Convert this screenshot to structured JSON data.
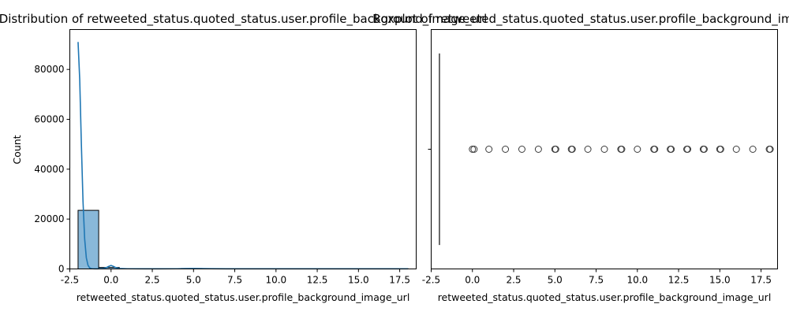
{
  "chart_data": [
    {
      "type": "histogram",
      "title": "Distribution of retweeted_status.quoted_status.user.profile_background_image_url",
      "xlabel": "retweeted_status.quoted_status.user.profile_background_image_url",
      "ylabel": "Count",
      "xlim": [
        -2.5,
        18.5
      ],
      "ylim": [
        0,
        96000
      ],
      "x_ticks": [
        -2.5,
        0.0,
        2.5,
        5.0,
        7.5,
        10.0,
        12.5,
        15.0,
        17.5
      ],
      "y_ticks": [
        0,
        20000,
        40000,
        60000,
        80000
      ],
      "bins": [
        {
          "x0": -2.0,
          "x1": -0.75,
          "count": 23500
        },
        {
          "x0": -0.75,
          "x1": 0.5,
          "count": 600
        },
        {
          "x0": 0.5,
          "x1": 1.75,
          "count": 150
        },
        {
          "x0": 1.75,
          "x1": 3.0,
          "count": 80
        },
        {
          "x0": 3.0,
          "x1": 4.25,
          "count": 90
        },
        {
          "x0": 4.25,
          "x1": 5.5,
          "count": 180
        },
        {
          "x0": 5.5,
          "x1": 6.75,
          "count": 120
        },
        {
          "x0": 6.75,
          "x1": 8.0,
          "count": 90
        },
        {
          "x0": 8.0,
          "x1": 9.25,
          "count": 100
        },
        {
          "x0": 9.25,
          "x1": 10.5,
          "count": 80
        },
        {
          "x0": 10.5,
          "x1": 11.75,
          "count": 80
        },
        {
          "x0": 11.75,
          "x1": 13.0,
          "count": 90
        },
        {
          "x0": 13.0,
          "x1": 14.25,
          "count": 80
        },
        {
          "x0": 14.25,
          "x1": 15.5,
          "count": 80
        },
        {
          "x0": 15.5,
          "x1": 16.75,
          "count": 70
        },
        {
          "x0": 16.75,
          "x1": 18.0,
          "count": 120
        }
      ],
      "kde": {
        "x": [
          -2.0,
          -1.9,
          -1.8,
          -1.7,
          -1.6,
          -1.5,
          -1.4,
          -1.3,
          -1.2,
          -1.1,
          -1.0,
          -0.8,
          -0.5,
          -0.3,
          -0.15,
          0.0,
          0.15,
          0.3,
          0.5,
          1.0,
          2.0,
          3.0,
          4.0,
          4.5,
          5.0,
          5.5,
          6.0,
          7.0,
          8.0,
          9.0,
          10.0,
          11.0,
          12.0,
          13.0,
          14.0,
          15.0,
          16.0,
          17.0,
          18.0
        ],
        "y": [
          91000,
          76000,
          50000,
          27000,
          12000,
          4500,
          1500,
          450,
          150,
          80,
          60,
          60,
          150,
          500,
          1000,
          1400,
          1000,
          500,
          200,
          80,
          60,
          60,
          80,
          150,
          200,
          150,
          100,
          60,
          50,
          50,
          50,
          50,
          50,
          50,
          50,
          50,
          50,
          50,
          50
        ]
      },
      "colors": {
        "bar_fill": "#89b8d9",
        "bar_edge": "#000000",
        "kde": "#1f77b4"
      }
    },
    {
      "type": "boxplot",
      "title": "Boxplot of retweeted_status.quoted_status.user.profile_background_image_url",
      "xlabel": "retweeted_status.quoted_status.user.profile_background_image_url",
      "xlim": [
        -2.5,
        18.5
      ],
      "x_ticks": [
        -2.5,
        0.0,
        2.5,
        5.0,
        7.5,
        10.0,
        12.5,
        15.0,
        17.5
      ],
      "box": {
        "min": -2.0,
        "q1": -2.0,
        "median": -2.0,
        "q3": -2.0,
        "max": -2.0
      },
      "outliers": [
        0.0,
        0.1,
        1.0,
        2.0,
        3.0,
        4.0,
        5.0,
        5.05,
        6.0,
        6.05,
        7.0,
        8.0,
        9.0,
        9.05,
        10.0,
        11.0,
        11.05,
        12.0,
        12.05,
        13.0,
        13.05,
        14.0,
        14.05,
        15.0,
        15.05,
        16.0,
        17.0,
        18.0,
        18.05
      ],
      "colors": {
        "line": "#3a3a3a",
        "marker_edge": "#3a3a3a"
      }
    }
  ]
}
